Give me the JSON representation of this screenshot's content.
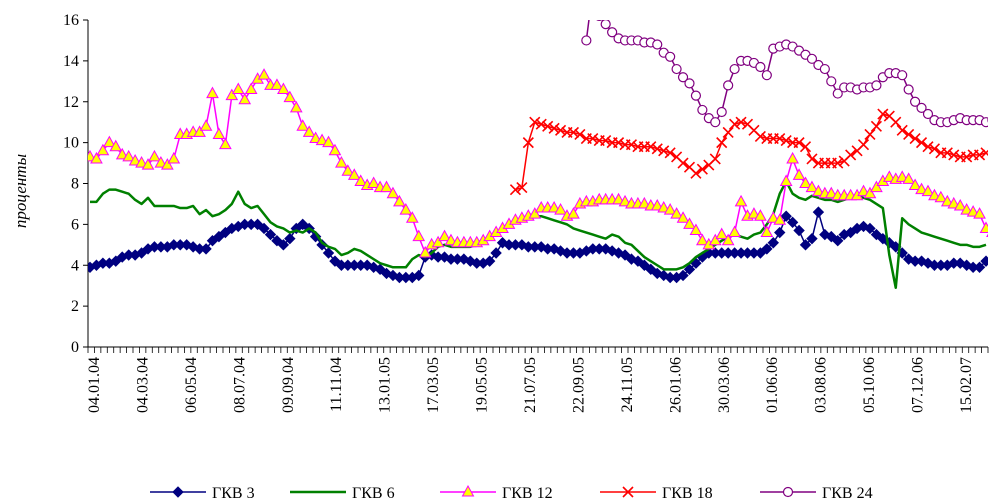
{
  "chart_data": {
    "type": "line",
    "title": "",
    "xlabel": "",
    "ylabel": "проценты",
    "ylim": [
      0,
      16
    ],
    "yticks": [
      0,
      2,
      4,
      6,
      8,
      10,
      12,
      14,
      16
    ],
    "grid": false,
    "legend_position": "bottom",
    "x_tick_labels": [
      "04.01.04",
      "04.03.04",
      "06.05.04",
      "08.07.04",
      "09.09.04",
      "11.11.04",
      "13.01.05",
      "17.03.05",
      "19.05.05",
      "21.07.05",
      "22.09.05",
      "24.11.05",
      "26.01.06",
      "30.03.06",
      "01.06.06",
      "03.08.06",
      "05.10.06",
      "07.12.06",
      "15.02.07"
    ],
    "series": [
      {
        "name": "ГКВ 3",
        "color": "#000080",
        "marker": "diamond",
        "line_width": 1.5,
        "values": [
          3.9,
          4.0,
          4.1,
          4.1,
          4.2,
          4.4,
          4.5,
          4.5,
          4.6,
          4.8,
          4.9,
          4.9,
          4.9,
          5.0,
          5.0,
          5.0,
          4.9,
          4.8,
          4.8,
          5.2,
          5.4,
          5.6,
          5.8,
          5.9,
          6.0,
          6.0,
          6.0,
          5.8,
          5.5,
          5.2,
          5.0,
          5.3,
          5.8,
          6.0,
          5.8,
          5.4,
          5.0,
          4.6,
          4.2,
          4.0,
          4.0,
          4.0,
          4.0,
          4.0,
          3.9,
          3.8,
          3.6,
          3.5,
          3.4,
          3.4,
          3.4,
          3.5,
          4.4,
          4.5,
          4.4,
          4.4,
          4.3,
          4.3,
          4.3,
          4.2,
          4.1,
          4.1,
          4.2,
          4.6,
          5.1,
          5.0,
          5.0,
          5.0,
          4.9,
          4.9,
          4.9,
          4.8,
          4.8,
          4.7,
          4.6,
          4.6,
          4.6,
          4.7,
          4.8,
          4.8,
          4.8,
          4.7,
          4.6,
          4.5,
          4.3,
          4.2,
          4.0,
          3.8,
          3.6,
          3.5,
          3.4,
          3.4,
          3.5,
          3.8,
          4.1,
          4.4,
          4.6,
          4.6,
          4.6,
          4.6,
          4.6,
          4.6,
          4.6,
          4.6,
          4.6,
          4.8,
          5.1,
          5.6,
          6.4,
          6.1,
          5.7,
          5.0,
          5.3,
          6.6,
          5.5,
          5.4,
          5.2,
          5.5,
          5.6,
          5.8,
          5.9,
          5.8,
          5.5,
          5.3,
          5.1,
          4.9,
          4.6,
          4.3,
          4.2,
          4.2,
          4.1,
          4.0,
          4.0,
          4.0,
          4.1,
          4.1,
          4.0,
          3.9,
          3.9,
          4.2
        ]
      },
      {
        "name": "ГКВ 6",
        "color": "#008000",
        "marker": "none",
        "line_width": 2.5,
        "values": [
          7.1,
          7.1,
          7.5,
          7.7,
          7.7,
          7.6,
          7.5,
          7.2,
          7.0,
          7.3,
          6.9,
          6.9,
          6.9,
          6.9,
          6.8,
          6.8,
          6.9,
          6.5,
          6.7,
          6.4,
          6.5,
          6.7,
          7.0,
          7.6,
          7.0,
          6.8,
          6.9,
          6.5,
          6.1,
          5.9,
          5.8,
          5.6,
          5.7,
          5.6,
          5.8,
          5.6,
          5.1,
          4.9,
          4.8,
          4.5,
          4.6,
          4.8,
          4.7,
          4.5,
          4.3,
          4.1,
          4.0,
          3.9,
          3.9,
          3.9,
          4.3,
          4.5,
          4.4,
          4.6,
          4.9,
          5.0,
          4.9,
          4.9,
          4.9,
          4.9,
          5.0,
          5.2,
          5.4,
          5.6,
          5.8,
          6.0,
          6.1,
          6.2,
          6.5,
          6.4,
          6.4,
          6.3,
          6.2,
          6.1,
          6.0,
          5.8,
          5.7,
          5.6,
          5.5,
          5.4,
          5.3,
          5.5,
          5.4,
          5.1,
          5.0,
          4.7,
          4.4,
          4.2,
          4.0,
          3.8,
          3.8,
          3.8,
          3.9,
          4.1,
          4.4,
          4.6,
          4.8,
          5.0,
          5.2,
          5.4,
          5.5,
          5.4,
          5.3,
          5.5,
          5.6,
          6.0,
          6.5,
          7.5,
          8.1,
          7.5,
          7.3,
          7.2,
          7.4,
          7.3,
          7.2,
          7.2,
          7.1,
          7.2,
          7.3,
          7.4,
          7.3,
          7.2,
          7.0,
          6.8,
          4.5,
          2.9,
          6.3,
          6.0,
          5.8,
          5.6,
          5.5,
          5.4,
          5.3,
          5.2,
          5.1,
          5.0,
          5.0,
          4.9,
          4.9,
          5.0
        ]
      },
      {
        "name": "ГКВ 12",
        "color": "#FF00FF",
        "marker": "triangle",
        "marker_fill": "#FFFF00",
        "line_width": 1.5,
        "values": [
          9.3,
          9.2,
          9.6,
          10.0,
          9.8,
          9.4,
          9.3,
          9.1,
          9.0,
          8.9,
          9.3,
          9.0,
          8.9,
          9.2,
          10.4,
          10.4,
          10.5,
          10.5,
          10.8,
          12.4,
          10.4,
          9.9,
          12.3,
          12.6,
          12.1,
          12.6,
          13.1,
          13.3,
          12.8,
          12.8,
          12.6,
          12.2,
          11.7,
          10.8,
          10.5,
          10.2,
          10.1,
          10.0,
          9.6,
          9.0,
          8.6,
          8.4,
          8.1,
          7.9,
          8.0,
          7.8,
          7.8,
          7.5,
          7.1,
          6.7,
          6.3,
          5.4,
          4.6,
          5.0,
          5.1,
          5.4,
          5.2,
          5.1,
          5.1,
          5.1,
          5.1,
          5.2,
          5.4,
          5.6,
          5.8,
          6.0,
          6.2,
          6.3,
          6.4,
          6.5,
          6.8,
          6.8,
          6.8,
          6.7,
          6.4,
          6.5,
          7.0,
          7.1,
          7.1,
          7.2,
          7.2,
          7.2,
          7.2,
          7.1,
          7.0,
          7.0,
          7.0,
          6.9,
          6.9,
          6.8,
          6.7,
          6.5,
          6.3,
          6.0,
          5.7,
          5.2,
          5.0,
          5.2,
          5.5,
          5.2,
          5.6,
          7.1,
          6.4,
          6.5,
          6.4,
          5.6,
          6.3,
          6.2,
          8.1,
          9.2,
          8.4,
          8.0,
          7.8,
          7.6,
          7.5,
          7.5,
          7.4,
          7.4,
          7.4,
          7.4,
          7.6,
          7.5,
          7.8,
          8.1,
          8.3,
          8.2,
          8.3,
          8.2,
          7.9,
          7.7,
          7.6,
          7.4,
          7.3,
          7.1,
          7.0,
          6.9,
          6.7,
          6.6,
          6.5,
          5.8,
          5.6
        ]
      },
      {
        "name": "ГКВ 18",
        "color": "#FF0000",
        "marker": "x",
        "line_width": 1.5,
        "values": [
          null,
          null,
          null,
          null,
          null,
          null,
          null,
          null,
          null,
          null,
          null,
          null,
          null,
          null,
          null,
          null,
          null,
          null,
          null,
          null,
          null,
          null,
          null,
          null,
          null,
          null,
          null,
          null,
          null,
          null,
          null,
          null,
          null,
          null,
          null,
          null,
          null,
          null,
          null,
          null,
          null,
          null,
          null,
          null,
          null,
          null,
          null,
          null,
          null,
          null,
          null,
          null,
          null,
          null,
          null,
          null,
          null,
          null,
          null,
          null,
          null,
          null,
          null,
          null,
          null,
          null,
          7.7,
          7.8,
          10.0,
          11.0,
          10.9,
          10.8,
          10.7,
          10.6,
          10.5,
          10.5,
          10.4,
          10.2,
          10.2,
          10.1,
          10.1,
          10.0,
          10.0,
          9.9,
          9.9,
          9.8,
          9.8,
          9.8,
          9.7,
          9.6,
          9.5,
          9.3,
          9.0,
          8.8,
          8.5,
          8.7,
          8.9,
          9.2,
          10.0,
          10.5,
          10.9,
          11.0,
          10.9,
          10.6,
          10.3,
          10.2,
          10.2,
          10.2,
          10.1,
          10.0,
          10.0,
          9.8,
          9.2,
          9.0,
          9.0,
          9.0,
          9.0,
          9.1,
          9.4,
          9.6,
          9.9,
          10.4,
          10.8,
          11.4,
          11.3,
          11.0,
          10.6,
          10.4,
          10.2,
          10.0,
          9.8,
          9.7,
          9.5,
          9.5,
          9.4,
          9.3,
          9.3,
          9.4,
          9.4,
          9.5
        ]
      },
      {
        "name": "ГКВ 24",
        "color": "#800080",
        "marker": "circle",
        "line_width": 1.5,
        "values": [
          null,
          null,
          null,
          null,
          null,
          null,
          null,
          null,
          null,
          null,
          null,
          null,
          null,
          null,
          null,
          null,
          null,
          null,
          null,
          null,
          null,
          null,
          null,
          null,
          null,
          null,
          null,
          null,
          null,
          null,
          null,
          null,
          null,
          null,
          null,
          null,
          null,
          null,
          null,
          null,
          null,
          null,
          null,
          null,
          null,
          null,
          null,
          null,
          null,
          null,
          null,
          null,
          null,
          null,
          null,
          null,
          null,
          null,
          null,
          null,
          null,
          null,
          null,
          null,
          null,
          null,
          null,
          null,
          null,
          null,
          null,
          null,
          null,
          null,
          null,
          null,
          null,
          15.0,
          17.5,
          16.2,
          15.8,
          15.4,
          15.1,
          15.0,
          15.0,
          15.0,
          14.9,
          14.9,
          14.8,
          14.4,
          14.2,
          13.6,
          13.2,
          12.9,
          12.3,
          11.6,
          11.2,
          11.0,
          11.5,
          12.8,
          13.6,
          14.0,
          14.0,
          13.9,
          13.7,
          13.3,
          14.6,
          14.7,
          14.8,
          14.7,
          14.5,
          14.3,
          14.1,
          13.8,
          13.6,
          13.0,
          12.4,
          12.7,
          12.7,
          12.6,
          12.7,
          12.7,
          12.8,
          13.2,
          13.4,
          13.4,
          13.3,
          12.6,
          12.0,
          11.7,
          11.4,
          11.1,
          11.0,
          11.0,
          11.1,
          11.2,
          11.1,
          11.1,
          11.1,
          11.0,
          11.1
        ]
      }
    ]
  }
}
